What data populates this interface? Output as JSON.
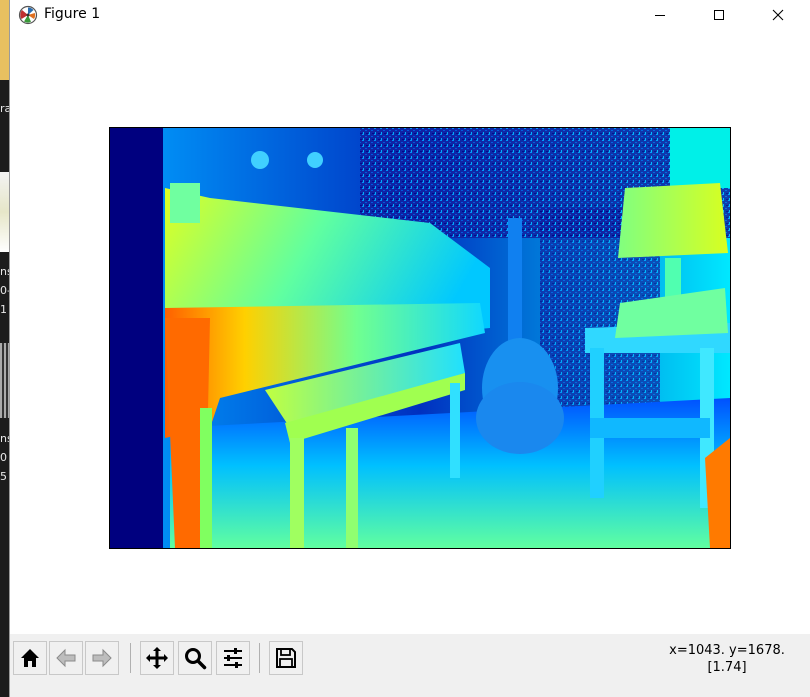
{
  "window": {
    "title": "Figure 1"
  },
  "titlebar_buttons": {
    "minimize": "minimize-icon",
    "maximize": "maximize-icon",
    "close": "close-icon"
  },
  "desktop_fragments": [
    "ra",
    "ns",
    "0-",
    "1",
    "ns",
    "0",
    "5"
  ],
  "figure": {
    "image_description_colormap": "jet",
    "left_band_color": "#00007f"
  },
  "toolbar": {
    "home": "home-icon",
    "back": "back-arrow-icon",
    "forward": "forward-arrow-icon",
    "pan": "pan-move-icon",
    "zoom": "zoom-magnifier-icon",
    "configure": "subplots-sliders-icon",
    "save": "save-floppy-icon"
  },
  "status": {
    "coords": "x=1043. y=1678.",
    "value": "[1.74]"
  }
}
